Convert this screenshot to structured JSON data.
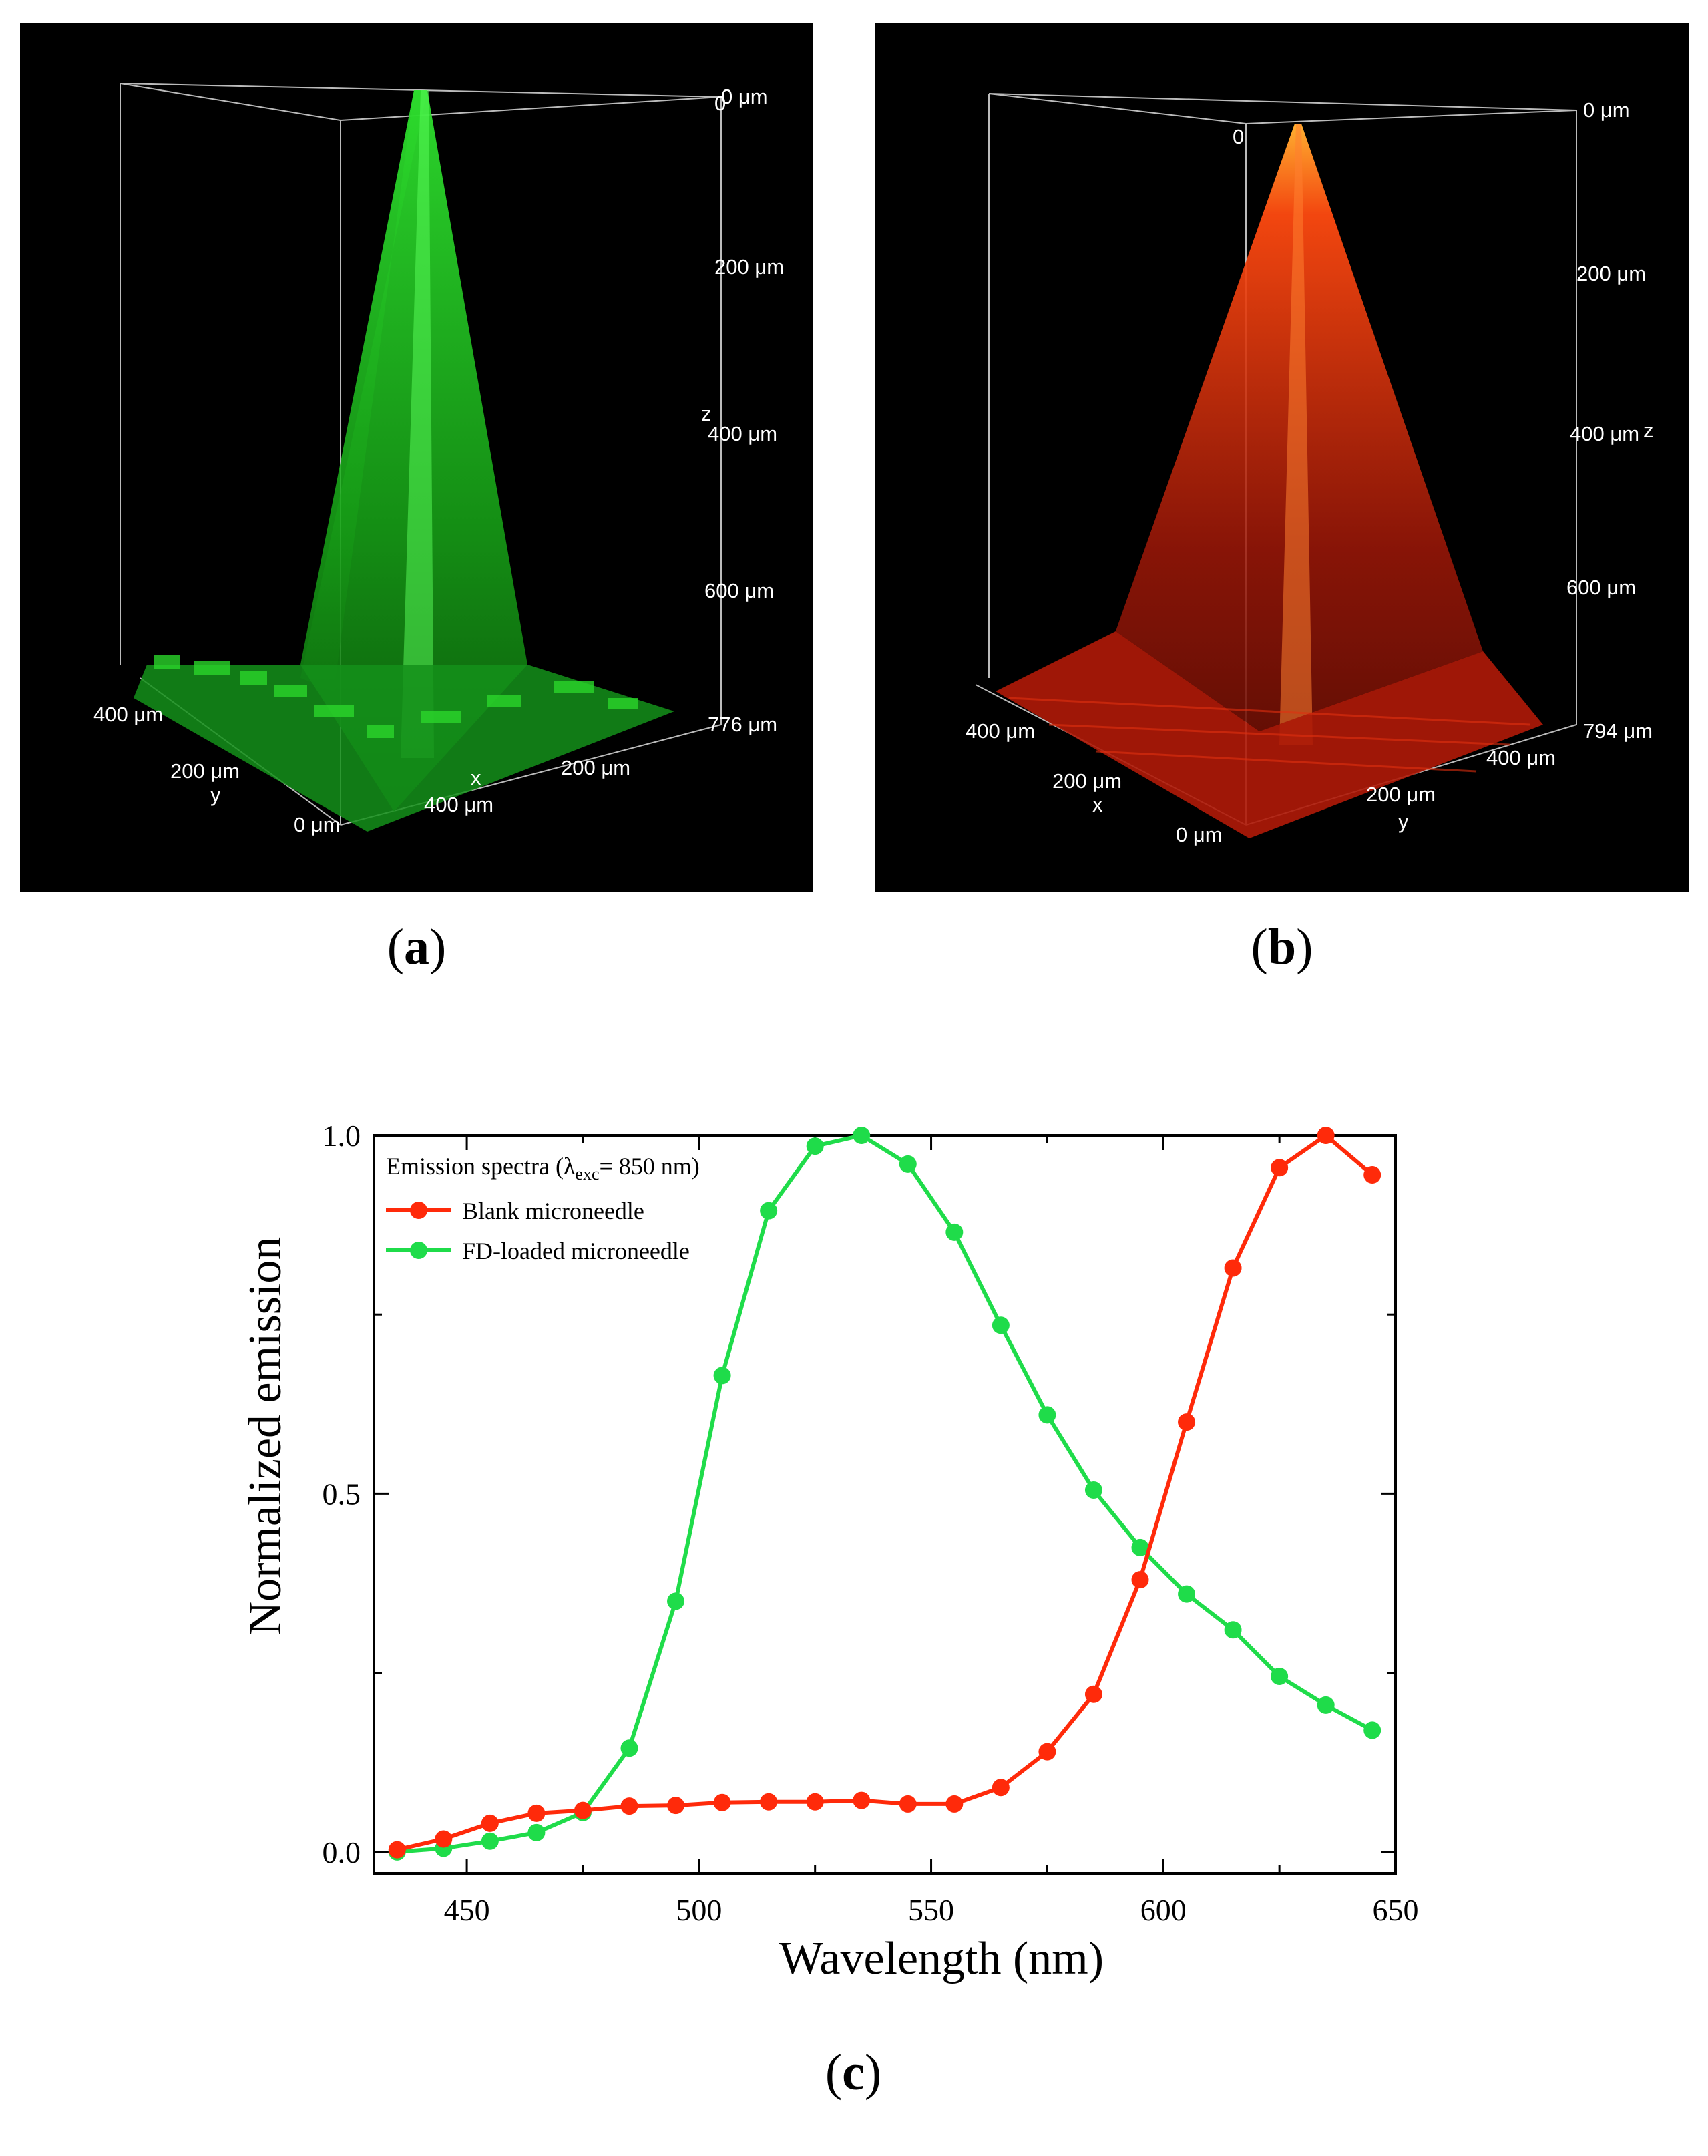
{
  "panel_a": {
    "caption_letter": "a",
    "color": "#22dd22",
    "labels": {
      "z_top": "0 μm",
      "z_origin": "0",
      "z_200": "200 μm",
      "z_letter": "z",
      "z_400": "400 μm",
      "z_600": "600 μm",
      "corner": "776 μm",
      "y_400": "400 μm",
      "y_200": "200 μm",
      "y_letter": "y",
      "origin": "0 μm",
      "x_letter": "x",
      "x_200": "200 μm",
      "x_400": "400 μm"
    }
  },
  "panel_b": {
    "caption_letter": "b",
    "color": "#ff3311",
    "labels": {
      "z_top": "0 μm",
      "z_origin": "0",
      "z_200": "200 μm",
      "z_400": "400 μm",
      "z_letter": "z",
      "z_600": "600 μm",
      "corner": "794 μm",
      "x_400": "400 μm",
      "x_200": "200 μm",
      "x_letter": "x",
      "origin": "0 μm",
      "y_200": "200 μm",
      "y_letter": "y",
      "y_400": "400 μm"
    }
  },
  "panel_c": {
    "caption_letter": "c"
  },
  "chart_data": {
    "type": "line",
    "xlabel": "Wavelength (nm)",
    "ylabel": "Normalized emission",
    "xlim": [
      430,
      650
    ],
    "ylim": [
      -0.03,
      1.0
    ],
    "xticks": [
      450,
      500,
      550,
      600,
      650
    ],
    "yticks": [
      0.0,
      0.5,
      1.0
    ],
    "ytick_labels": [
      "0.0",
      "0.5",
      "1.0"
    ],
    "legend_title_pre": "Emission spectra (λ",
    "legend_title_sub": "exc",
    "legend_title_post": "= 850 nm)",
    "x": [
      435,
      445,
      455,
      465,
      475,
      485,
      495,
      505,
      515,
      525,
      535,
      545,
      555,
      565,
      575,
      585,
      595,
      605,
      615,
      625,
      635,
      645
    ],
    "series": [
      {
        "name": "Blank microneedle",
        "color": "#ff2a0a",
        "values": [
          0.003,
          0.018,
          0.04,
          0.054,
          0.058,
          0.064,
          0.065,
          0.069,
          0.07,
          0.07,
          0.072,
          0.067,
          0.067,
          0.09,
          0.14,
          0.22,
          0.38,
          0.6,
          0.815,
          0.955,
          1.0,
          0.945
        ]
      },
      {
        "name": "FD-loaded microneedle",
        "color": "#1fdc4a",
        "values": [
          0.0,
          0.005,
          0.015,
          0.027,
          0.055,
          0.145,
          0.35,
          0.665,
          0.895,
          0.985,
          1.0,
          0.96,
          0.865,
          0.735,
          0.61,
          0.505,
          0.425,
          0.36,
          0.31,
          0.245,
          0.205,
          0.17
        ]
      }
    ]
  }
}
